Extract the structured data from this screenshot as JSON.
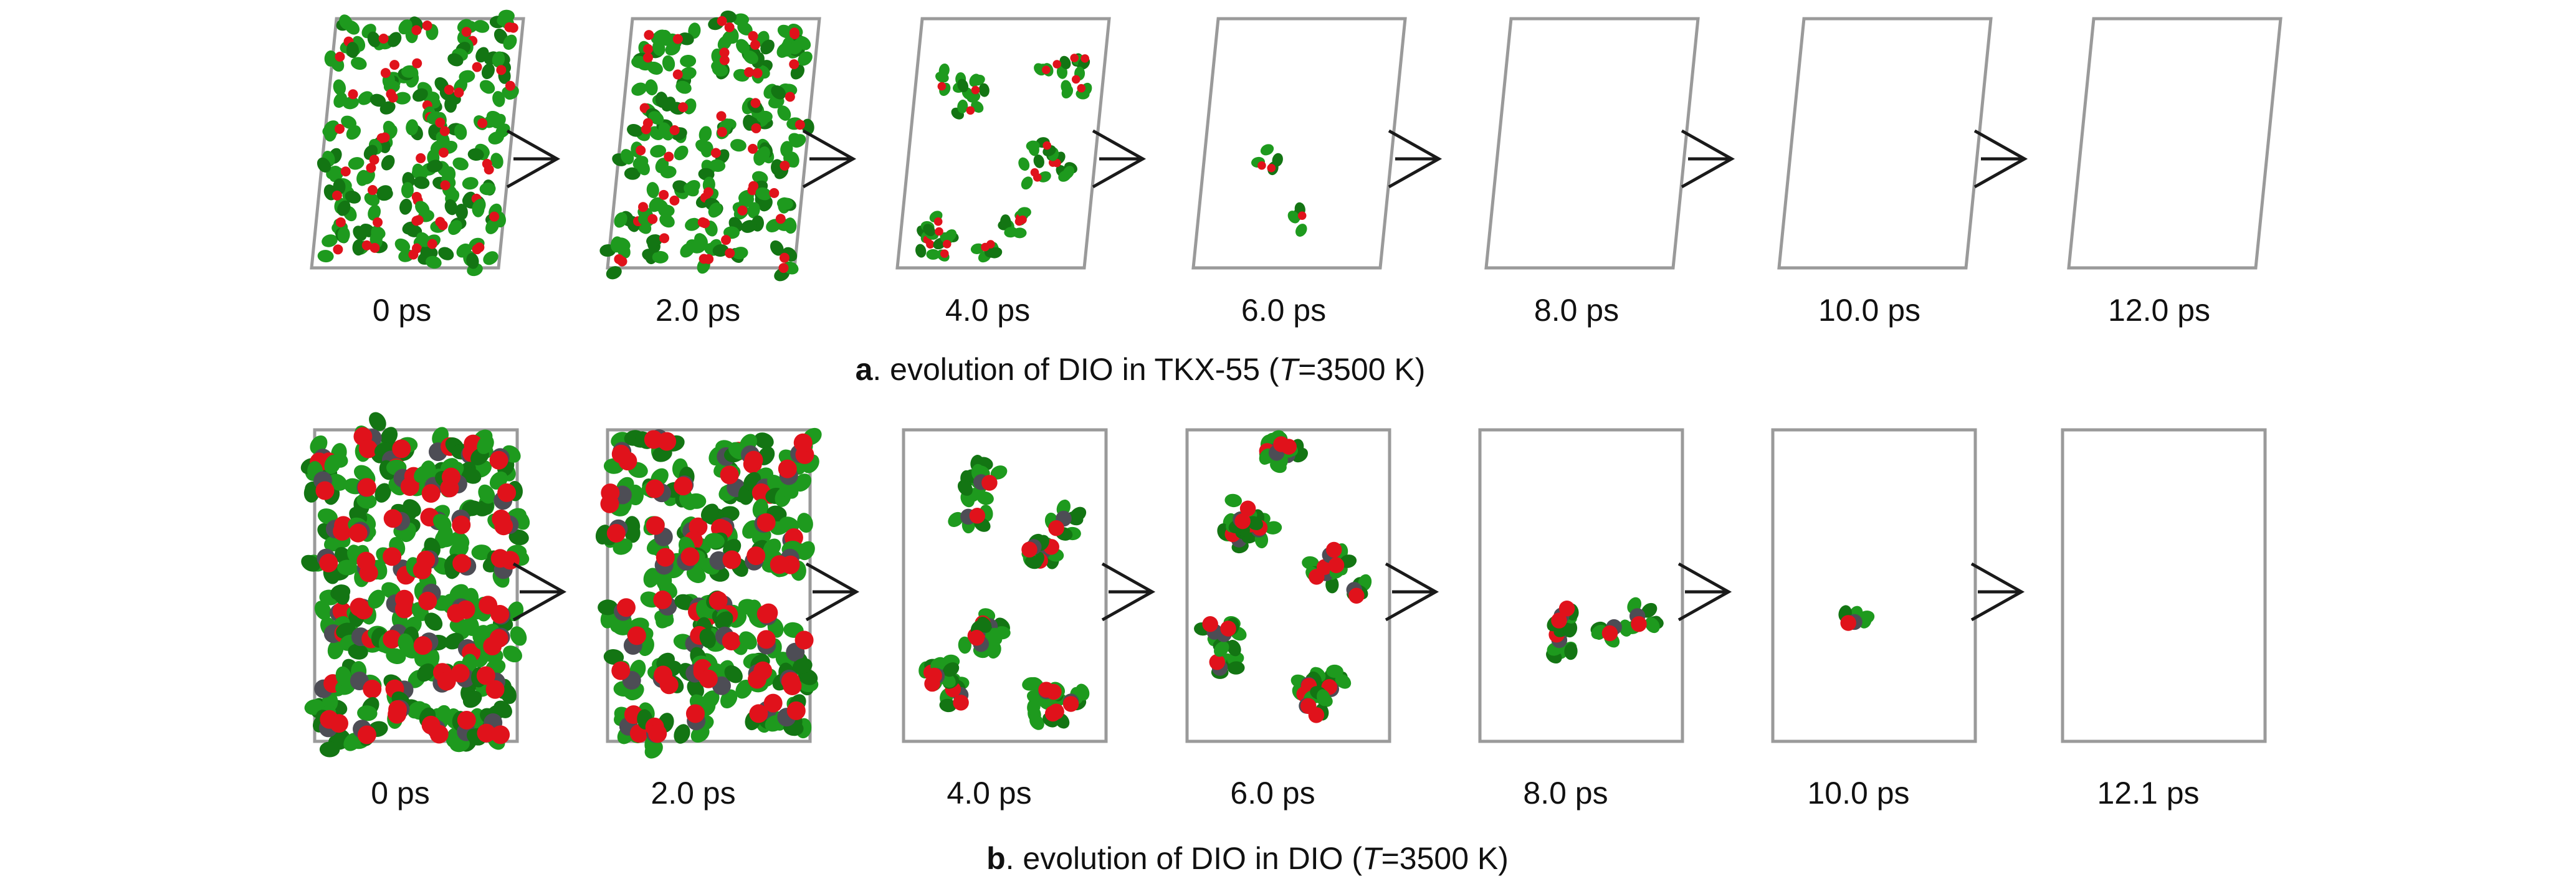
{
  "colors": {
    "green": "#1e9a1e",
    "green_dark": "#137513",
    "red": "#e0121b",
    "gray": "#4d4d55",
    "frame": "#9a9a9a",
    "arrow": "#1a1a1a"
  },
  "rows": [
    {
      "id": "a",
      "caption_letter": "a",
      "caption_pre": ". evolution of DIO in TKX-55 (",
      "caption_var": "T",
      "caption_post": "=3500 K)",
      "cell_shape": "parallelogram",
      "frames": [
        {
          "time": "0 ps",
          "occupancy": 1.0
        },
        {
          "time": "2.0 ps",
          "occupancy": 0.9
        },
        {
          "time": "4.0 ps",
          "occupancy": 0.45
        },
        {
          "time": "6.0 ps",
          "occupancy": 0.05
        },
        {
          "time": "8.0 ps",
          "occupancy": 0
        },
        {
          "time": "10.0 ps",
          "occupancy": 0
        },
        {
          "time": "12.0 ps",
          "occupancy": 0
        }
      ]
    },
    {
      "id": "b",
      "caption_letter": "b",
      "caption_pre": ". evolution of DIO in DIO (",
      "caption_var": "T",
      "caption_post": "=3500 K)",
      "cell_shape": "rectangle",
      "frames": [
        {
          "time": "0 ps",
          "occupancy": 1.0
        },
        {
          "time": "2.0 ps",
          "occupancy": 0.9
        },
        {
          "time": "4.0 ps",
          "occupancy": 0.55
        },
        {
          "time": "6.0 ps",
          "occupancy": 0.3
        },
        {
          "time": "8.0 ps",
          "occupancy": 0.06
        },
        {
          "time": "10.0 ps",
          "occupancy": 0.03
        },
        {
          "time": "12.1 ps",
          "occupancy": 0
        }
      ]
    }
  ]
}
